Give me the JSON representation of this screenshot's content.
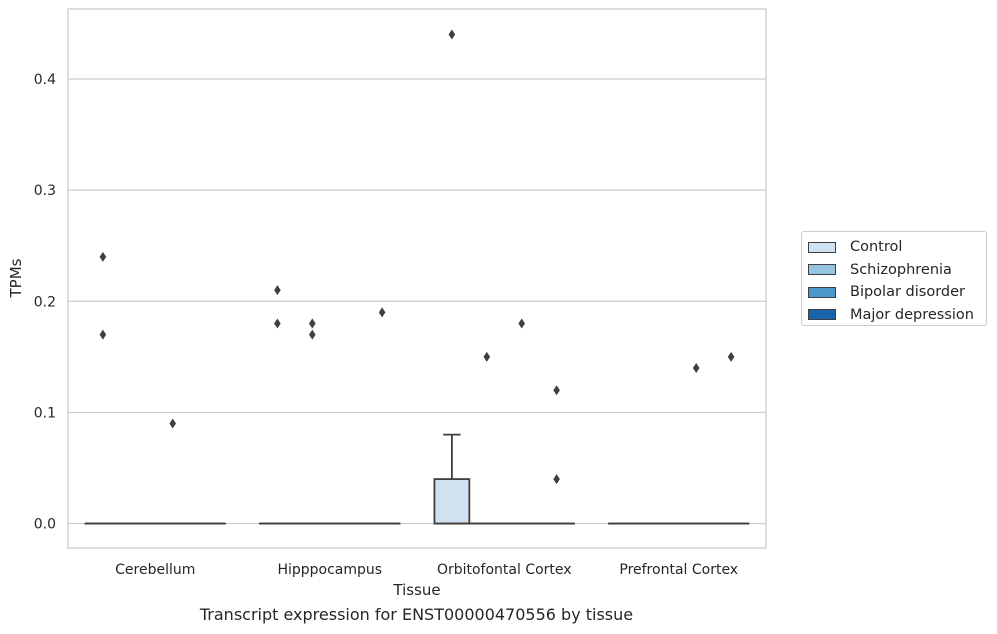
{
  "caption": "Transcript expression for ENST00000470556 by tissue",
  "chart_data": {
    "type": "box",
    "title": "",
    "xlabel": "Tissue",
    "ylabel": "TPMs",
    "ylim": [
      -0.022,
      0.463
    ],
    "yticks": [
      0.0,
      0.1,
      0.2,
      0.3,
      0.4
    ],
    "ytick_labels": [
      "0.0",
      "0.1",
      "0.2",
      "0.3",
      "0.4"
    ],
    "grid": "horizontal",
    "legend_position": "right",
    "categories": [
      "Cerebellum",
      "Hipppocampus",
      "Orbitofontal Cortex",
      "Prefrontal Cortex"
    ],
    "series": [
      {
        "name": "Control",
        "color": "#d0e1f2",
        "boxes": [
          {
            "q1": 0,
            "median": 0,
            "q3": 0,
            "whisker_low": 0,
            "whisker_high": 0,
            "outliers": [
              0.24,
              0.17
            ]
          },
          {
            "q1": 0,
            "median": 0,
            "q3": 0,
            "whisker_low": 0,
            "whisker_high": 0,
            "outliers": [
              0.21,
              0.18
            ]
          },
          {
            "q1": 0,
            "median": 0,
            "q3": 0.04,
            "whisker_low": 0,
            "whisker_high": 0.08,
            "outliers": [
              0.44
            ]
          },
          {
            "q1": 0,
            "median": 0,
            "q3": 0,
            "whisker_low": 0,
            "whisker_high": 0,
            "outliers": []
          }
        ]
      },
      {
        "name": "Schizophrenia",
        "color": "#94c4df",
        "boxes": [
          {
            "q1": 0,
            "median": 0,
            "q3": 0,
            "whisker_low": 0,
            "whisker_high": 0,
            "outliers": []
          },
          {
            "q1": 0,
            "median": 0,
            "q3": 0,
            "whisker_low": 0,
            "whisker_high": 0,
            "outliers": [
              0.18,
              0.17
            ]
          },
          {
            "q1": 0,
            "median": 0,
            "q3": 0,
            "whisker_low": 0,
            "whisker_high": 0,
            "outliers": [
              0.15
            ]
          },
          {
            "q1": 0,
            "median": 0,
            "q3": 0,
            "whisker_low": 0,
            "whisker_high": 0,
            "outliers": []
          }
        ]
      },
      {
        "name": "Bipolar disorder",
        "color": "#4a98c9",
        "boxes": [
          {
            "q1": 0,
            "median": 0,
            "q3": 0,
            "whisker_low": 0,
            "whisker_high": 0,
            "outliers": [
              0.09
            ]
          },
          {
            "q1": 0,
            "median": 0,
            "q3": 0,
            "whisker_low": 0,
            "whisker_high": 0,
            "outliers": []
          },
          {
            "q1": 0,
            "median": 0,
            "q3": 0,
            "whisker_low": 0,
            "whisker_high": 0,
            "outliers": [
              0.18
            ]
          },
          {
            "q1": 0,
            "median": 0,
            "q3": 0,
            "whisker_low": 0,
            "whisker_high": 0,
            "outliers": [
              0.14
            ]
          }
        ]
      },
      {
        "name": "Major depression",
        "color": "#1764ab",
        "boxes": [
          {
            "q1": 0,
            "median": 0,
            "q3": 0,
            "whisker_low": 0,
            "whisker_high": 0,
            "outliers": []
          },
          {
            "q1": 0,
            "median": 0,
            "q3": 0,
            "whisker_low": 0,
            "whisker_high": 0,
            "outliers": [
              0.19
            ]
          },
          {
            "q1": 0,
            "median": 0,
            "q3": 0,
            "whisker_low": 0,
            "whisker_high": 0,
            "outliers": [
              0.12,
              0.04
            ]
          },
          {
            "q1": 0,
            "median": 0,
            "q3": 0,
            "whisker_low": 0,
            "whisker_high": 0,
            "outliers": [
              0.15
            ]
          }
        ]
      }
    ]
  }
}
